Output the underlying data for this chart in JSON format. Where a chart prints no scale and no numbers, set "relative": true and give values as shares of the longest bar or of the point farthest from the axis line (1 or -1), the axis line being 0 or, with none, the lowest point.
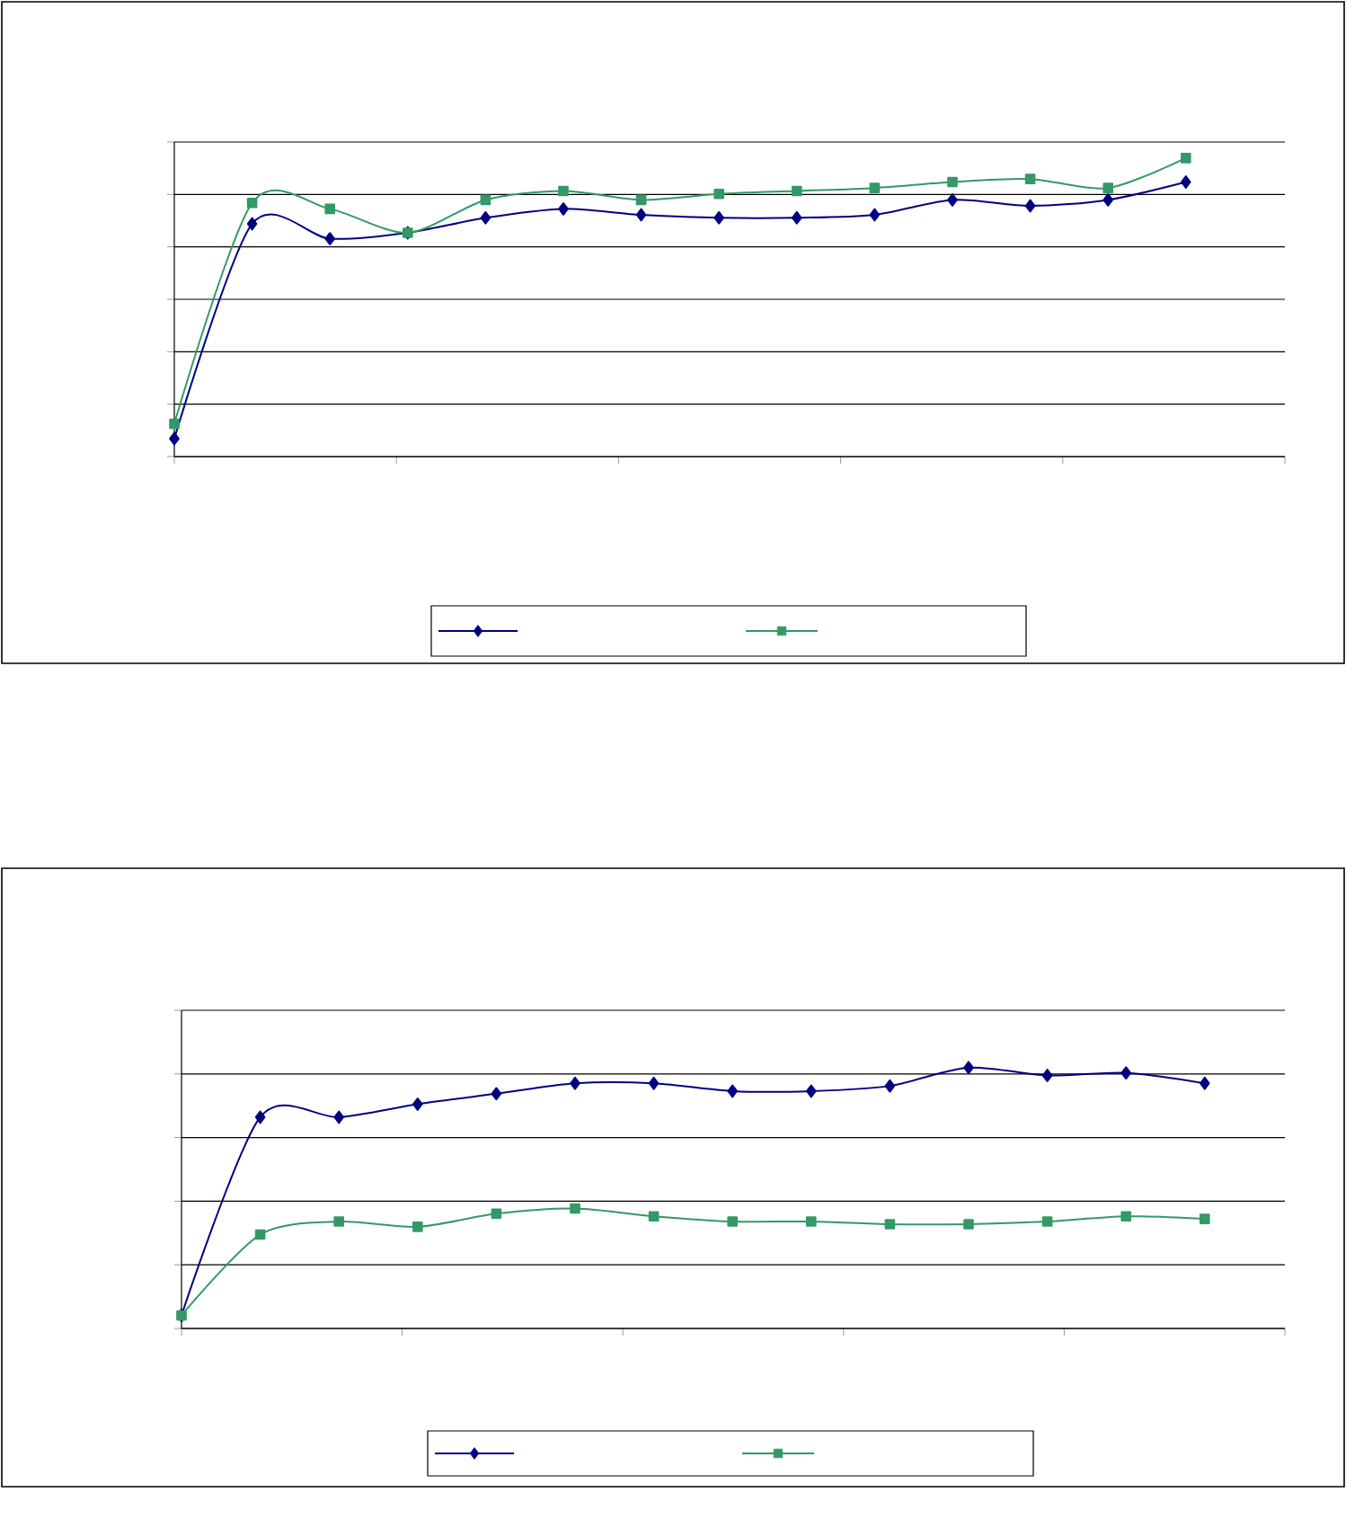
{
  "chart_data": [
    {
      "type": "line",
      "relative": true,
      "categories": [
        null,
        null,
        null,
        null,
        null,
        null,
        null,
        null,
        null,
        null,
        null,
        null,
        null,
        null
      ],
      "grid": "y",
      "line_style": "solid",
      "series": [
        {
          "color": "#000080",
          "marker": "diamond",
          "values": [
            0.06,
            0.78,
            0.73,
            0.75,
            0.8,
            0.83,
            0.81,
            0.8,
            0.8,
            0.81,
            0.86,
            0.84,
            0.86,
            0.92
          ]
        },
        {
          "color": "#339966",
          "marker": "square",
          "values": [
            0.11,
            0.85,
            0.83,
            0.75,
            0.86,
            0.89,
            0.86,
            0.88,
            0.89,
            0.9,
            0.92,
            0.93,
            0.9,
            1
          ]
        }
      ]
    },
    {
      "type": "line",
      "relative": true,
      "categories": [
        null,
        null,
        null,
        null,
        null,
        null,
        null,
        null,
        null,
        null,
        null,
        null,
        null,
        null
      ],
      "grid": "y",
      "line_style": "solid",
      "series": [
        {
          "color": "#000080",
          "marker": "diamond",
          "values": [
            0.05,
            0.81,
            0.81,
            0.86,
            0.9,
            0.94,
            0.94,
            0.91,
            0.91,
            0.93,
            1,
            0.97,
            0.98,
            0.94
          ]
        },
        {
          "color": "#339966",
          "marker": "square",
          "values": [
            0.05,
            0.36,
            0.41,
            0.39,
            0.44,
            0.46,
            0.43,
            0.41,
            0.41,
            0.4,
            0.4,
            0.41,
            0.43,
            0.42
          ]
        }
      ]
    }
  ]
}
